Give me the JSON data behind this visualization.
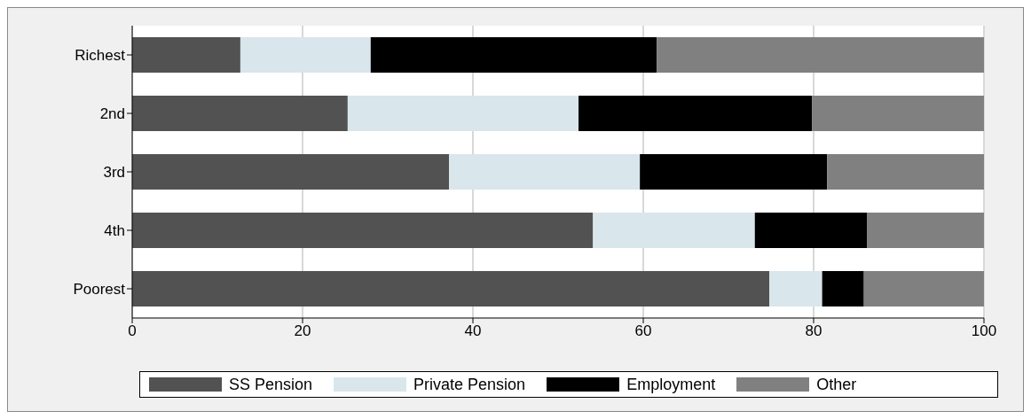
{
  "chart_data": {
    "type": "bar",
    "orientation": "horizontal",
    "stacked": true,
    "categories": [
      "Richest",
      "2nd",
      "3rd",
      "4th",
      "Poorest"
    ],
    "series": [
      {
        "name": "SS Pension",
        "color": "#525252",
        "values": [
          12.7,
          25.3,
          37.2,
          54.1,
          74.8
        ]
      },
      {
        "name": "Private Pension",
        "color": "#d9e6ec",
        "values": [
          15.3,
          27.1,
          22.4,
          19.0,
          6.2
        ]
      },
      {
        "name": "Employment",
        "color": "#000000",
        "values": [
          33.6,
          27.4,
          22.0,
          13.2,
          4.9
        ]
      },
      {
        "name": "Other",
        "color": "#808080",
        "values": [
          38.4,
          20.2,
          18.4,
          13.7,
          14.1
        ]
      }
    ],
    "xlim": [
      0,
      100
    ],
    "xticks": [
      0,
      20,
      40,
      60,
      80,
      100
    ],
    "grid": "x",
    "legend": "bottom"
  }
}
